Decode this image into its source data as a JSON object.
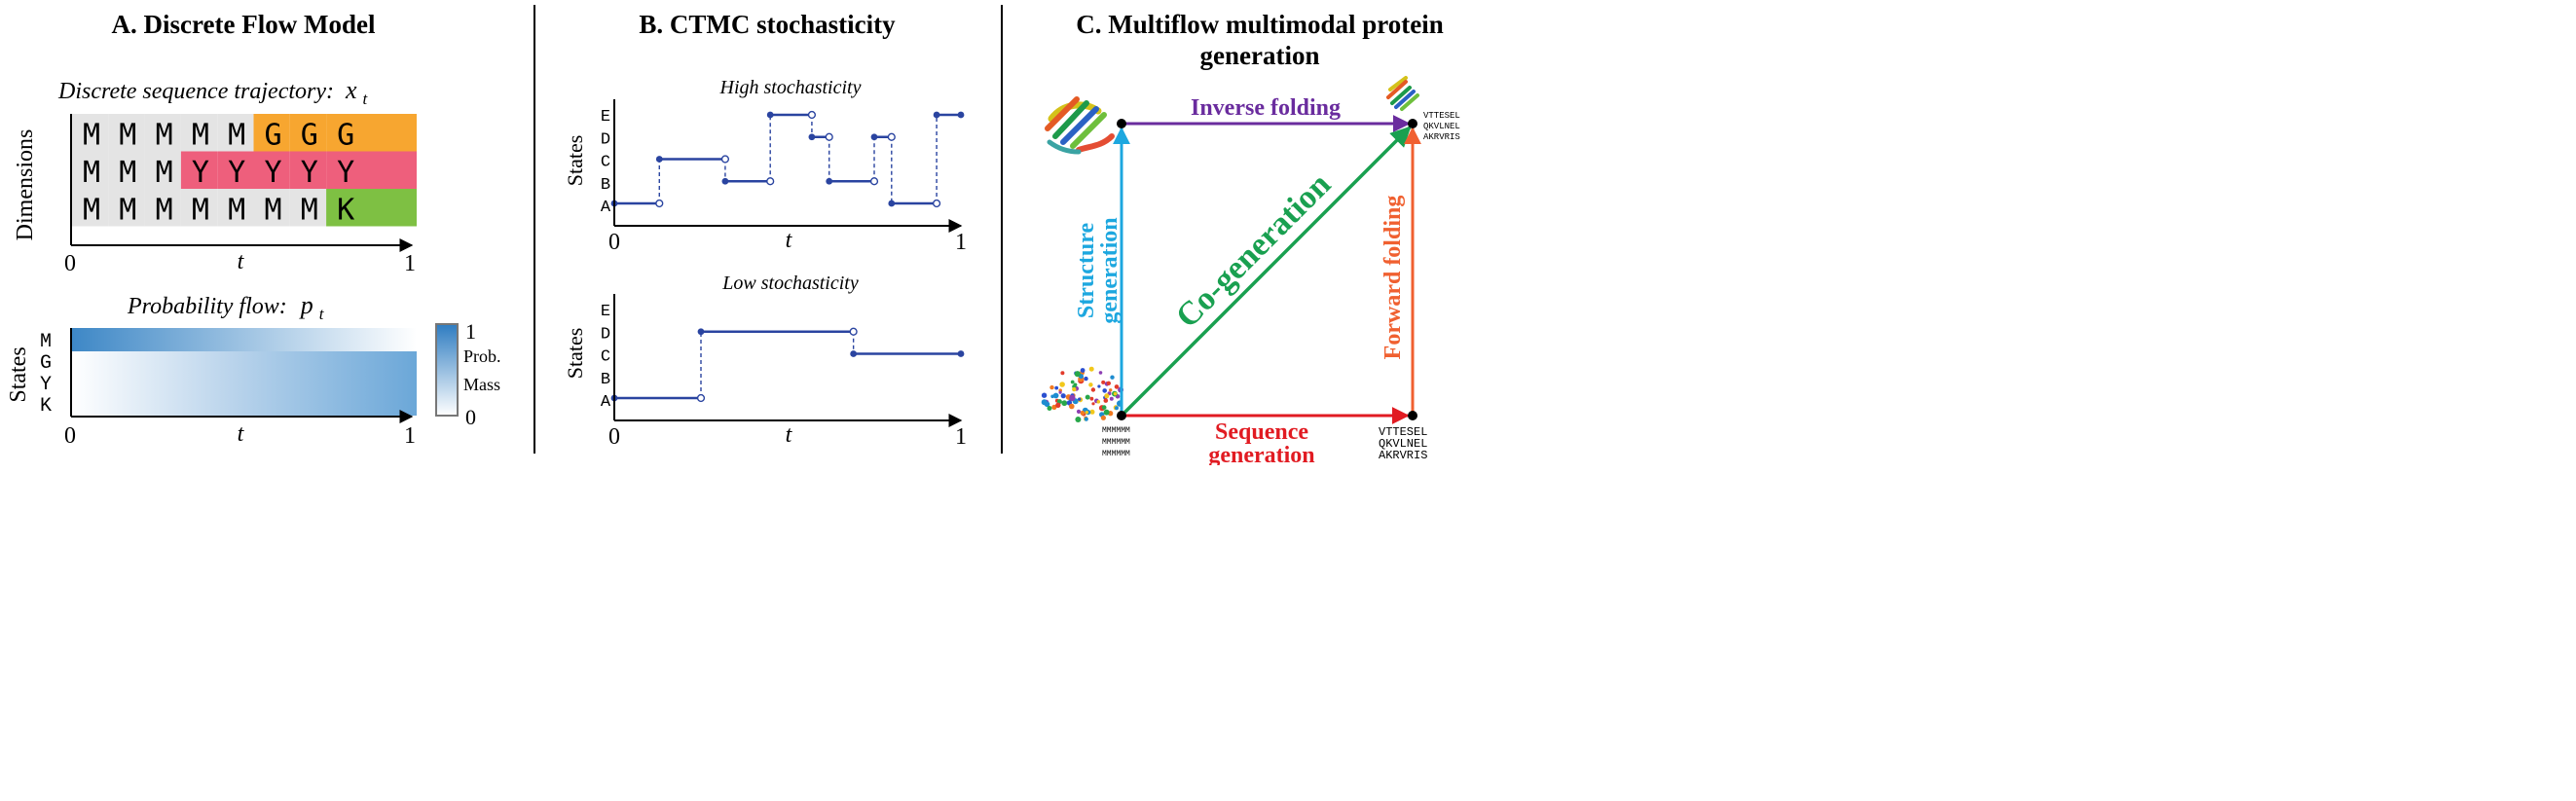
{
  "panelA": {
    "title": "A. Discrete Flow Model",
    "traj_label": "Discrete sequence trajectory:",
    "traj_symbol": "x",
    "traj_sub": "t",
    "y_label": "Dimensions",
    "x_tick_0": "0",
    "x_label": "t",
    "x_tick_1": "1",
    "rows": [
      [
        "M",
        "M",
        "M",
        "M",
        "M",
        "G",
        "G",
        "G"
      ],
      [
        "M",
        "M",
        "M",
        "Y",
        "Y",
        "Y",
        "Y",
        "Y"
      ],
      [
        "M",
        "M",
        "M",
        "M",
        "M",
        "M",
        "M",
        "K"
      ]
    ],
    "colors": {
      "grey": "#e4e4e4",
      "orange": "#f7a630",
      "pink": "#ee5f7c",
      "green": "#7ec043"
    },
    "prob_label": "Probability flow:",
    "prob_symbol": "p",
    "prob_sub": "t",
    "states_label": "States",
    "state_letters": [
      "M",
      "G",
      "Y",
      "K"
    ],
    "prob_tick_0": "0",
    "prob_x_label": "t",
    "prob_tick_1": "1",
    "colorbar_top": "1",
    "colorbar_mid1": "Prob.",
    "colorbar_mid2": "Mass",
    "colorbar_bottom": "0"
  },
  "panelB": {
    "title": "B. CTMC stochasticity",
    "high_label": "High stochasticity",
    "low_label": "Low stochasticity",
    "y_label": "States",
    "state_letters": [
      "E",
      "D",
      "C",
      "B",
      "A"
    ],
    "x_tick_0": "0",
    "x_label": "t",
    "x_tick_1": "1",
    "line_color": "#2a44a0"
  },
  "panelC": {
    "title_line1": "C. Multiflow multimodal protein",
    "title_line2": "generation",
    "inverse_folding": "Inverse folding",
    "structure_generation_1": "Structure",
    "structure_generation_2": "generation",
    "cogeneration": "Co-generation",
    "forward_folding": "Forward folding",
    "sequence_generation_1": "Sequence",
    "sequence_generation_2": "generation",
    "seq_top": [
      "VTTESEL",
      "QKVLNEL",
      "AKRVRIS"
    ],
    "seq_bottom_right": [
      "VTTESEL",
      "QKVLNEL",
      "AKRVRIS"
    ],
    "seq_bottom_left": [
      "MMMMMM",
      "MMMMMM",
      "MMMMMM"
    ],
    "colors": {
      "purple": "#6a2c9e",
      "cyan": "#1da7df",
      "green": "#19a050",
      "orange": "#f06030",
      "red": "#e11b22"
    }
  },
  "chart_data": [
    {
      "type": "line",
      "title": "High stochasticity",
      "xlabel": "t",
      "ylabel": "States",
      "categories": [
        "A",
        "B",
        "C",
        "D",
        "E"
      ],
      "xlim": [
        0,
        1
      ],
      "segments": [
        {
          "x0": 0.0,
          "x1": 0.13,
          "state": "A"
        },
        {
          "x0": 0.13,
          "x1": 0.32,
          "state": "C"
        },
        {
          "x0": 0.32,
          "x1": 0.45,
          "state": "B"
        },
        {
          "x0": 0.45,
          "x1": 0.57,
          "state": "E"
        },
        {
          "x0": 0.57,
          "x1": 0.62,
          "state": "D"
        },
        {
          "x0": 0.62,
          "x1": 0.75,
          "state": "B"
        },
        {
          "x0": 0.75,
          "x1": 0.8,
          "state": "D"
        },
        {
          "x0": 0.8,
          "x1": 0.93,
          "state": "A"
        },
        {
          "x0": 0.93,
          "x1": 1.0,
          "state": "E"
        }
      ]
    },
    {
      "type": "line",
      "title": "Low stochasticity",
      "xlabel": "t",
      "ylabel": "States",
      "categories": [
        "A",
        "B",
        "C",
        "D",
        "E"
      ],
      "xlim": [
        0,
        1
      ],
      "segments": [
        {
          "x0": 0.0,
          "x1": 0.25,
          "state": "A"
        },
        {
          "x0": 0.25,
          "x1": 0.69,
          "state": "D"
        },
        {
          "x0": 0.69,
          "x1": 1.0,
          "state": "C"
        }
      ]
    }
  ]
}
